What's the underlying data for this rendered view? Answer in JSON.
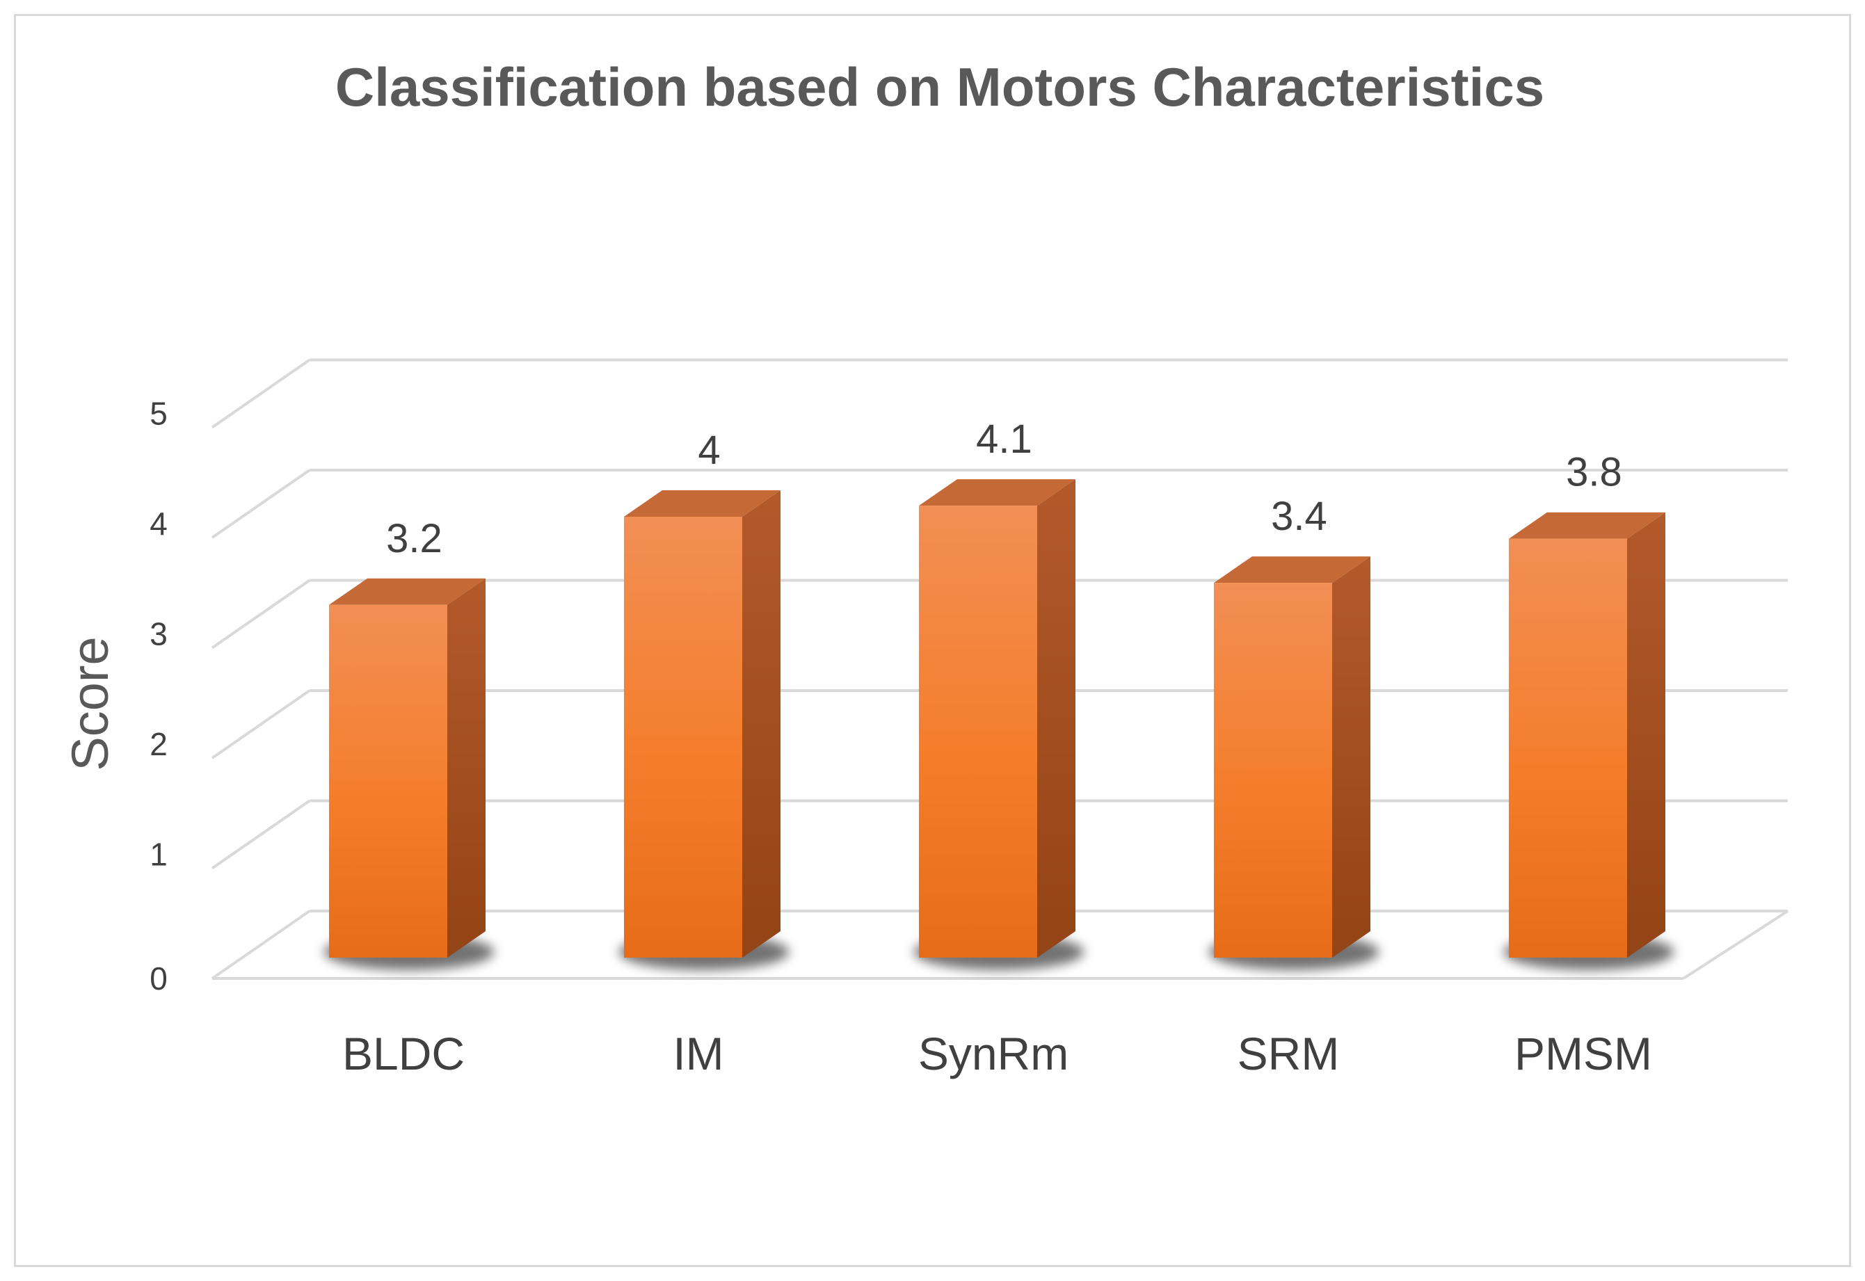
{
  "chart_data": {
    "type": "bar",
    "title": "Classification based on Motors Characteristics",
    "xlabel": "",
    "ylabel": "Score",
    "categories": [
      "BLDC",
      "IM",
      "SynRm",
      "SRM",
      "PMSM"
    ],
    "values": [
      3.2,
      4,
      4.1,
      3.4,
      3.8
    ],
    "value_labels": [
      "3.2",
      "4",
      "4.1",
      "3.4",
      "3.8"
    ],
    "ylim": [
      0,
      5
    ],
    "yticks": [
      "0",
      "1",
      "2",
      "3",
      "4",
      "5"
    ],
    "grid": true,
    "legend": "none",
    "style": "3d-column",
    "colors": {
      "bar_front_top": "#f28f55",
      "bar_front_mid": "#f47d2b",
      "bar_front_bottom": "#e76c19",
      "bar_side": "#a5501f",
      "bar_top": "#c56a36",
      "gridline": "#d9d9d9",
      "text": "#404040",
      "title": "#595959"
    }
  }
}
